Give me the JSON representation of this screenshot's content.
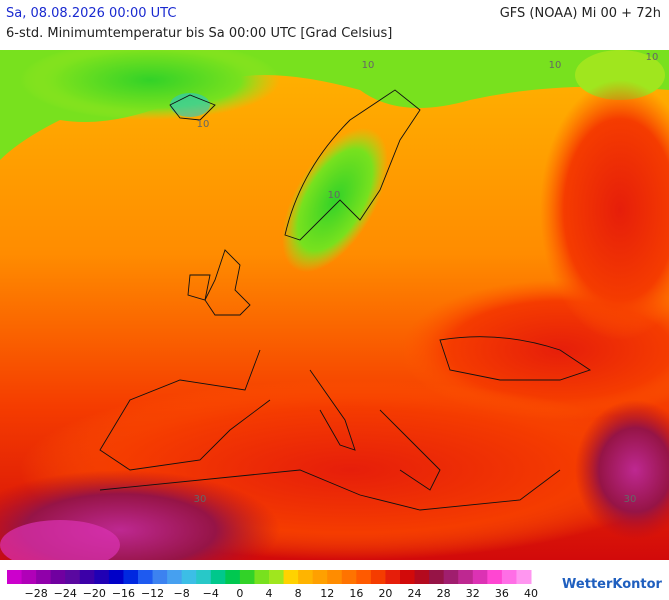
{
  "header": {
    "date": "Sa, 08.08.2026 00:00 UTC",
    "model": "GFS (NOAA) Mi 00 + 72h",
    "subtitle": "6-std. Minimumtemperatur bis Sa 00:00 UTC [Grad Celsius]"
  },
  "map": {
    "contour_labels": [
      "10",
      "10",
      "10",
      "10",
      "10",
      "30",
      "30"
    ]
  },
  "legend": {
    "labels": [
      "−28",
      "−24",
      "−20",
      "−16",
      "−12",
      "−8",
      "−4",
      "0",
      "4",
      "8",
      "12",
      "16",
      "20",
      "24",
      "28",
      "32",
      "36",
      "40"
    ],
    "colors": [
      "#cc00cc",
      "#b000b8",
      "#9000aa",
      "#7000a0",
      "#5a08a0",
      "#3c00a8",
      "#2000b4",
      "#0000c8",
      "#0028e0",
      "#1e5af0",
      "#3c82f0",
      "#46a0f0",
      "#3cbee6",
      "#28c8c8",
      "#00c88c",
      "#00c850",
      "#32d228",
      "#78e11e",
      "#a0e61e",
      "#ffd200",
      "#ffb400",
      "#ffa000",
      "#ff8c00",
      "#ff7300",
      "#ff5a00",
      "#f53c00",
      "#e61e0a",
      "#d20a0a",
      "#b40a1e",
      "#961446",
      "#a01e6e",
      "#be2891",
      "#dc32b4",
      "#ff46d2",
      "#ff6ee6",
      "#ff96f0"
    ],
    "logo": "WetterKontor"
  }
}
